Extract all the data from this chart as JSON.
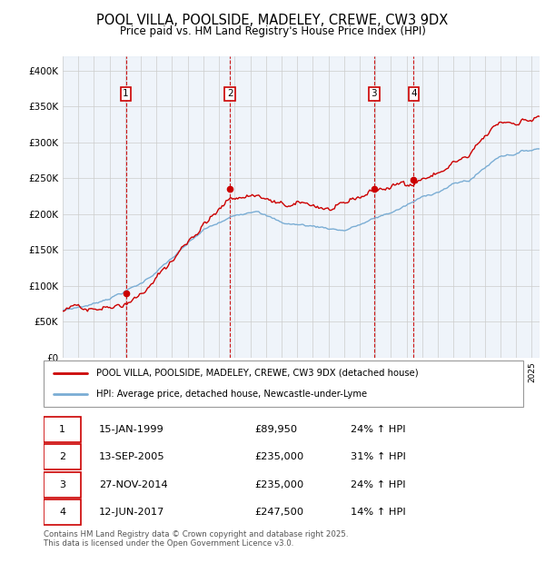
{
  "title": "POOL VILLA, POOLSIDE, MADELEY, CREWE, CW3 9DX",
  "subtitle": "Price paid vs. HM Land Registry's House Price Index (HPI)",
  "ylim": [
    0,
    420000
  ],
  "yticks": [
    0,
    50000,
    100000,
    150000,
    200000,
    250000,
    300000,
    350000,
    400000
  ],
  "ytick_labels": [
    "£0",
    "£50K",
    "£100K",
    "£150K",
    "£200K",
    "£250K",
    "£300K",
    "£350K",
    "£400K"
  ],
  "sales": [
    {
      "num": 1,
      "date": "15-JAN-1999",
      "price": 89950,
      "year": 1999.04,
      "pct": "24%",
      "direction": "↑"
    },
    {
      "num": 2,
      "date": "13-SEP-2005",
      "price": 235000,
      "year": 2005.71,
      "pct": "31%",
      "direction": "↑"
    },
    {
      "num": 3,
      "date": "27-NOV-2014",
      "price": 235000,
      "year": 2014.91,
      "pct": "24%",
      "direction": "↑"
    },
    {
      "num": 4,
      "date": "12-JUN-2017",
      "price": 247500,
      "year": 2017.45,
      "pct": "14%",
      "direction": "↑"
    }
  ],
  "red_line_color": "#cc0000",
  "blue_line_color": "#7aadd4",
  "marker_box_color": "#cc0000",
  "vline_color": "#cc0000",
  "grid_color": "#cccccc",
  "legend_label_red": "POOL VILLA, POOLSIDE, MADELEY, CREWE, CW3 9DX (detached house)",
  "legend_label_blue": "HPI: Average price, detached house, Newcastle-under-Lyme",
  "footnote": "Contains HM Land Registry data © Crown copyright and database right 2025.\nThis data is licensed under the Open Government Licence v3.0.",
  "xmin": 1995.0,
  "xmax": 2025.5
}
